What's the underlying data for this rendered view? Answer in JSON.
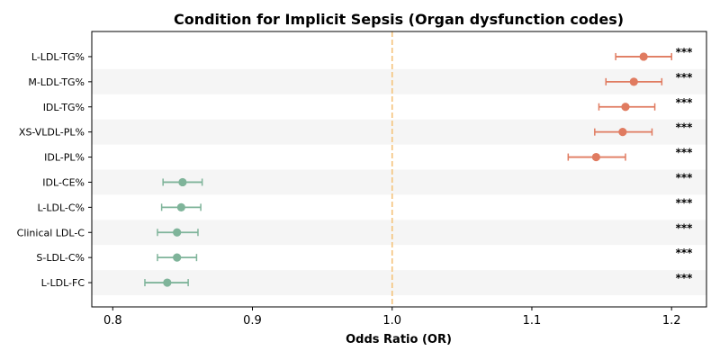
{
  "chart_data": {
    "type": "forest",
    "title": "Condition for Implicit Sepsis (Organ dysfunction codes)",
    "xlabel": "Odds Ratio (OR)",
    "ylabel": "",
    "xlim": [
      0.785,
      1.225
    ],
    "xticks": [
      "0.8",
      "0.9",
      "1.0",
      "1.1",
      "1.2"
    ],
    "reference_line": 1.0,
    "colors": {
      "positive": "#E07B60",
      "negative": "#7FB49A",
      "reference": "#F4C27A",
      "stripe": "#F5F5F5"
    },
    "rows": [
      {
        "label": "L-LDL-TG%",
        "or": 1.18,
        "lo": 1.16,
        "hi": 1.2,
        "sig": "***"
      },
      {
        "label": "M-LDL-TG%",
        "or": 1.173,
        "lo": 1.153,
        "hi": 1.193,
        "sig": "***"
      },
      {
        "label": "IDL-TG%",
        "or": 1.167,
        "lo": 1.148,
        "hi": 1.188,
        "sig": "***"
      },
      {
        "label": "XS-VLDL-PL%",
        "or": 1.165,
        "lo": 1.145,
        "hi": 1.186,
        "sig": "***"
      },
      {
        "label": "IDL-PL%",
        "or": 1.146,
        "lo": 1.126,
        "hi": 1.167,
        "sig": "***"
      },
      {
        "label": "IDL-CE%",
        "or": 0.85,
        "lo": 0.836,
        "hi": 0.864,
        "sig": "***"
      },
      {
        "label": "L-LDL-C%",
        "or": 0.849,
        "lo": 0.835,
        "hi": 0.863,
        "sig": "***"
      },
      {
        "label": "Clinical LDL-C",
        "or": 0.846,
        "lo": 0.832,
        "hi": 0.861,
        "sig": "***"
      },
      {
        "label": "S-LDL-C%",
        "or": 0.846,
        "lo": 0.832,
        "hi": 0.86,
        "sig": "***"
      },
      {
        "label": "L-LDL-FC",
        "or": 0.839,
        "lo": 0.823,
        "hi": 0.854,
        "sig": "***"
      }
    ]
  }
}
